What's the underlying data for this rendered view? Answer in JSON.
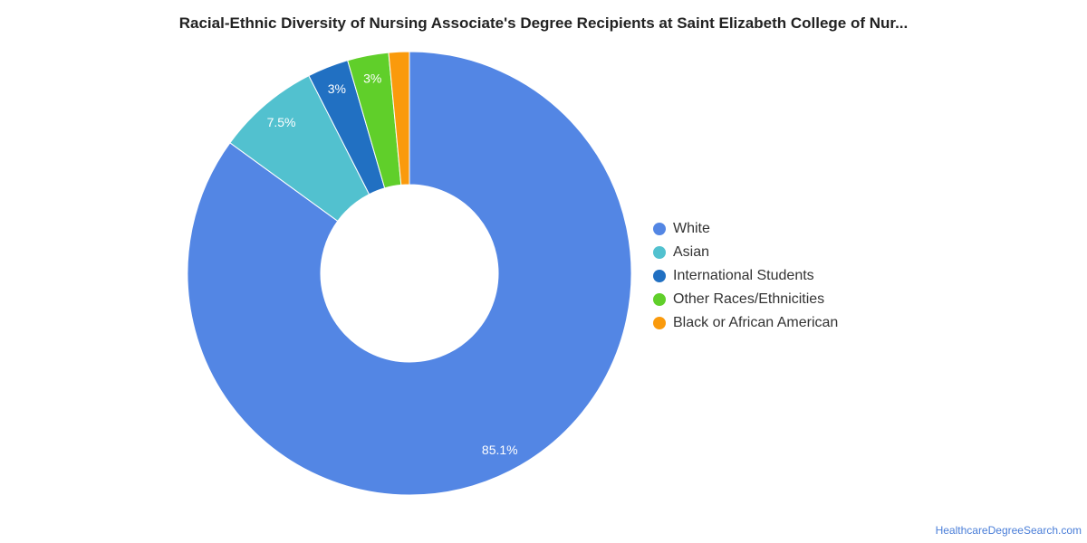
{
  "chart_data": {
    "type": "pie",
    "donut": true,
    "title": "Racial-Ethnic Diversity of Nursing Associate's Degree Recipients at Saint Elizabeth College of Nur...",
    "categories": [
      "White",
      "Asian",
      "International Students",
      "Other Races/Ethnicities",
      "Black or African American"
    ],
    "values": [
      85.1,
      7.5,
      3,
      3,
      1.5
    ],
    "data_labels": [
      "85.1%",
      "7.5%",
      "3%",
      "3%",
      ""
    ],
    "colors": [
      "#5386e4",
      "#52c1cf",
      "#2170c2",
      "#60cf2a",
      "#fa9a0c"
    ],
    "legend_position": "right"
  },
  "footer": {
    "source_link": "HealthcareDegreeSearch.com"
  }
}
